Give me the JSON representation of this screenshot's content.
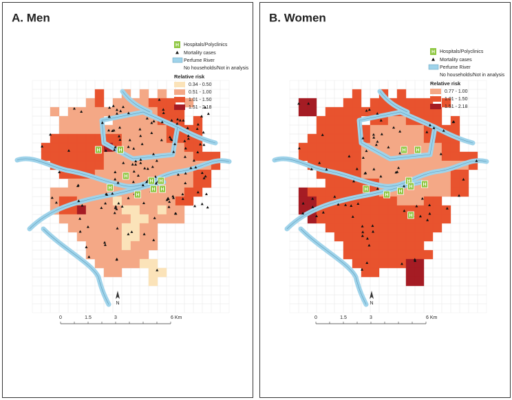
{
  "panels": [
    {
      "title": "A. Men",
      "legend": {
        "hospitals": "Hospitals/Polyclinics",
        "mortality": "Mortality cases",
        "river": "Perfume River",
        "no_households": "No households/Not in analysis",
        "risk_title": "Relative risk",
        "risk_classes": [
          {
            "label": "0.34 - 0.50",
            "color": "#fbe3b9"
          },
          {
            "label": "0.51 - 1.00",
            "color": "#f4a886"
          },
          {
            "label": "1.01 - 1.50",
            "color": "#e8532e"
          },
          {
            "label": "1.51 - 2.18",
            "color": "#a51c24"
          }
        ]
      }
    },
    {
      "title": "B. Women",
      "legend": {
        "hospitals": "Hospitals/Polyclinics",
        "mortality": "Mortality cases",
        "river": "Perfume River",
        "no_households": "No households/Not in analysis",
        "risk_title": "Relative risk",
        "risk_classes": [
          {
            "label": "0.77 - 1.00",
            "color": "#f4a886"
          },
          {
            "label": "1.01 - 1.50",
            "color": "#e8532e"
          },
          {
            "label": "1.51 - 2.18",
            "color": "#a51c24"
          }
        ]
      }
    }
  ],
  "hospital_icon": "H",
  "north": "N",
  "scale_labels": [
    "0",
    "1.5",
    "3",
    "6 Km"
  ]
}
